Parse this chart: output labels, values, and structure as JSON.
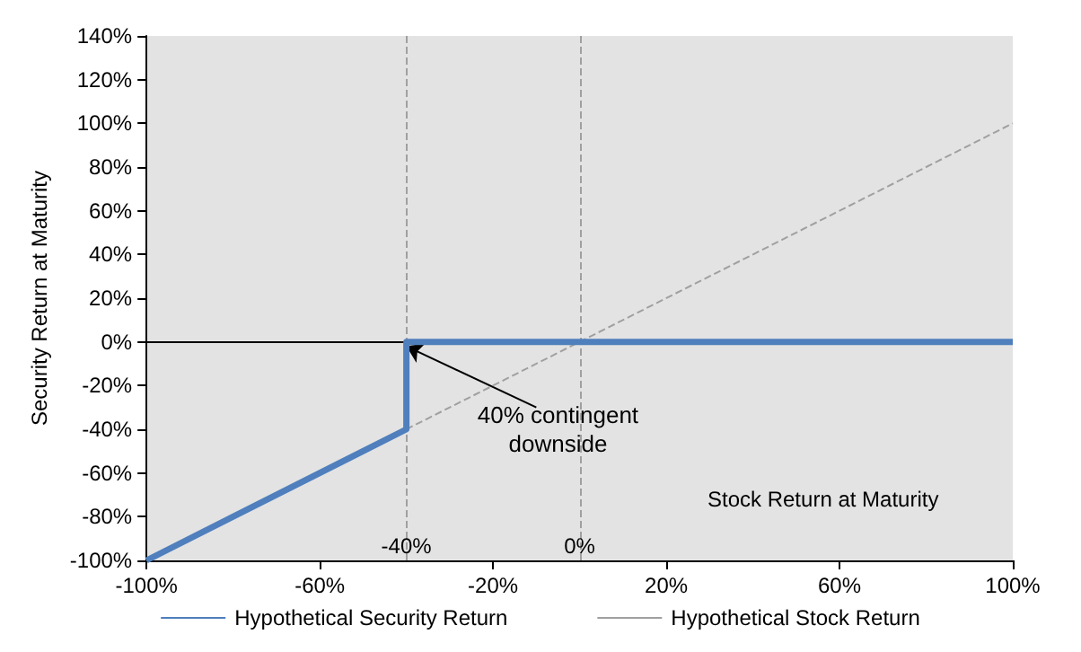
{
  "chart_data": {
    "type": "line",
    "xlabel": "Stock Return at Maturity",
    "ylabel": "Security Return at Maturity",
    "xlim": [
      -100,
      100
    ],
    "xticks": [
      {
        "value": -100,
        "label": "-100%"
      },
      {
        "value": -60,
        "label": "-60%"
      },
      {
        "value": -20,
        "label": "-20%"
      },
      {
        "value": 20,
        "label": "20%"
      },
      {
        "value": 60,
        "label": "60%"
      },
      {
        "value": 100,
        "label": "100%"
      }
    ],
    "ylim": [
      -100,
      140
    ],
    "yticks": [
      {
        "value": -100,
        "label": "-100%"
      },
      {
        "value": -80,
        "label": "-80%"
      },
      {
        "value": -60,
        "label": "-60%"
      },
      {
        "value": -40,
        "label": "-40%"
      },
      {
        "value": -20,
        "label": "-20%"
      },
      {
        "value": 0,
        "label": "0%"
      },
      {
        "value": 20,
        "label": "20%"
      },
      {
        "value": 40,
        "label": "40%"
      },
      {
        "value": 60,
        "label": "60%"
      },
      {
        "value": 80,
        "label": "80%"
      },
      {
        "value": 100,
        "label": "100%"
      },
      {
        "value": 120,
        "label": "120%"
      },
      {
        "value": 140,
        "label": "140%"
      }
    ],
    "series": [
      {
        "name": "Hypothetical Security Return",
        "color": "#4f7fbd",
        "line_style": "solid",
        "x": [
          -100,
          -40,
          -40,
          100
        ],
        "values": [
          -100,
          -40,
          0,
          0
        ]
      },
      {
        "name": "Hypothetical Stock Return",
        "color": "#a0a0a0",
        "line_style": "dashed",
        "x": [
          -100,
          100
        ],
        "values": [
          -100,
          100
        ]
      }
    ],
    "ref_lines": [
      {
        "axis": "y",
        "value": 0,
        "color": "#000000",
        "line_style": "solid"
      },
      {
        "axis": "x",
        "value": -40,
        "label": "-40%",
        "color": "#a0a0a0",
        "line_style": "dashed"
      },
      {
        "axis": "x",
        "value": 0,
        "label": "0%",
        "color": "#a0a0a0",
        "line_style": "dashed"
      }
    ],
    "annotations": [
      {
        "text": "40% contingent\ndownside",
        "x": -40,
        "y": 0
      }
    ],
    "grid": false,
    "legend": "bottom",
    "marker": "none"
  }
}
